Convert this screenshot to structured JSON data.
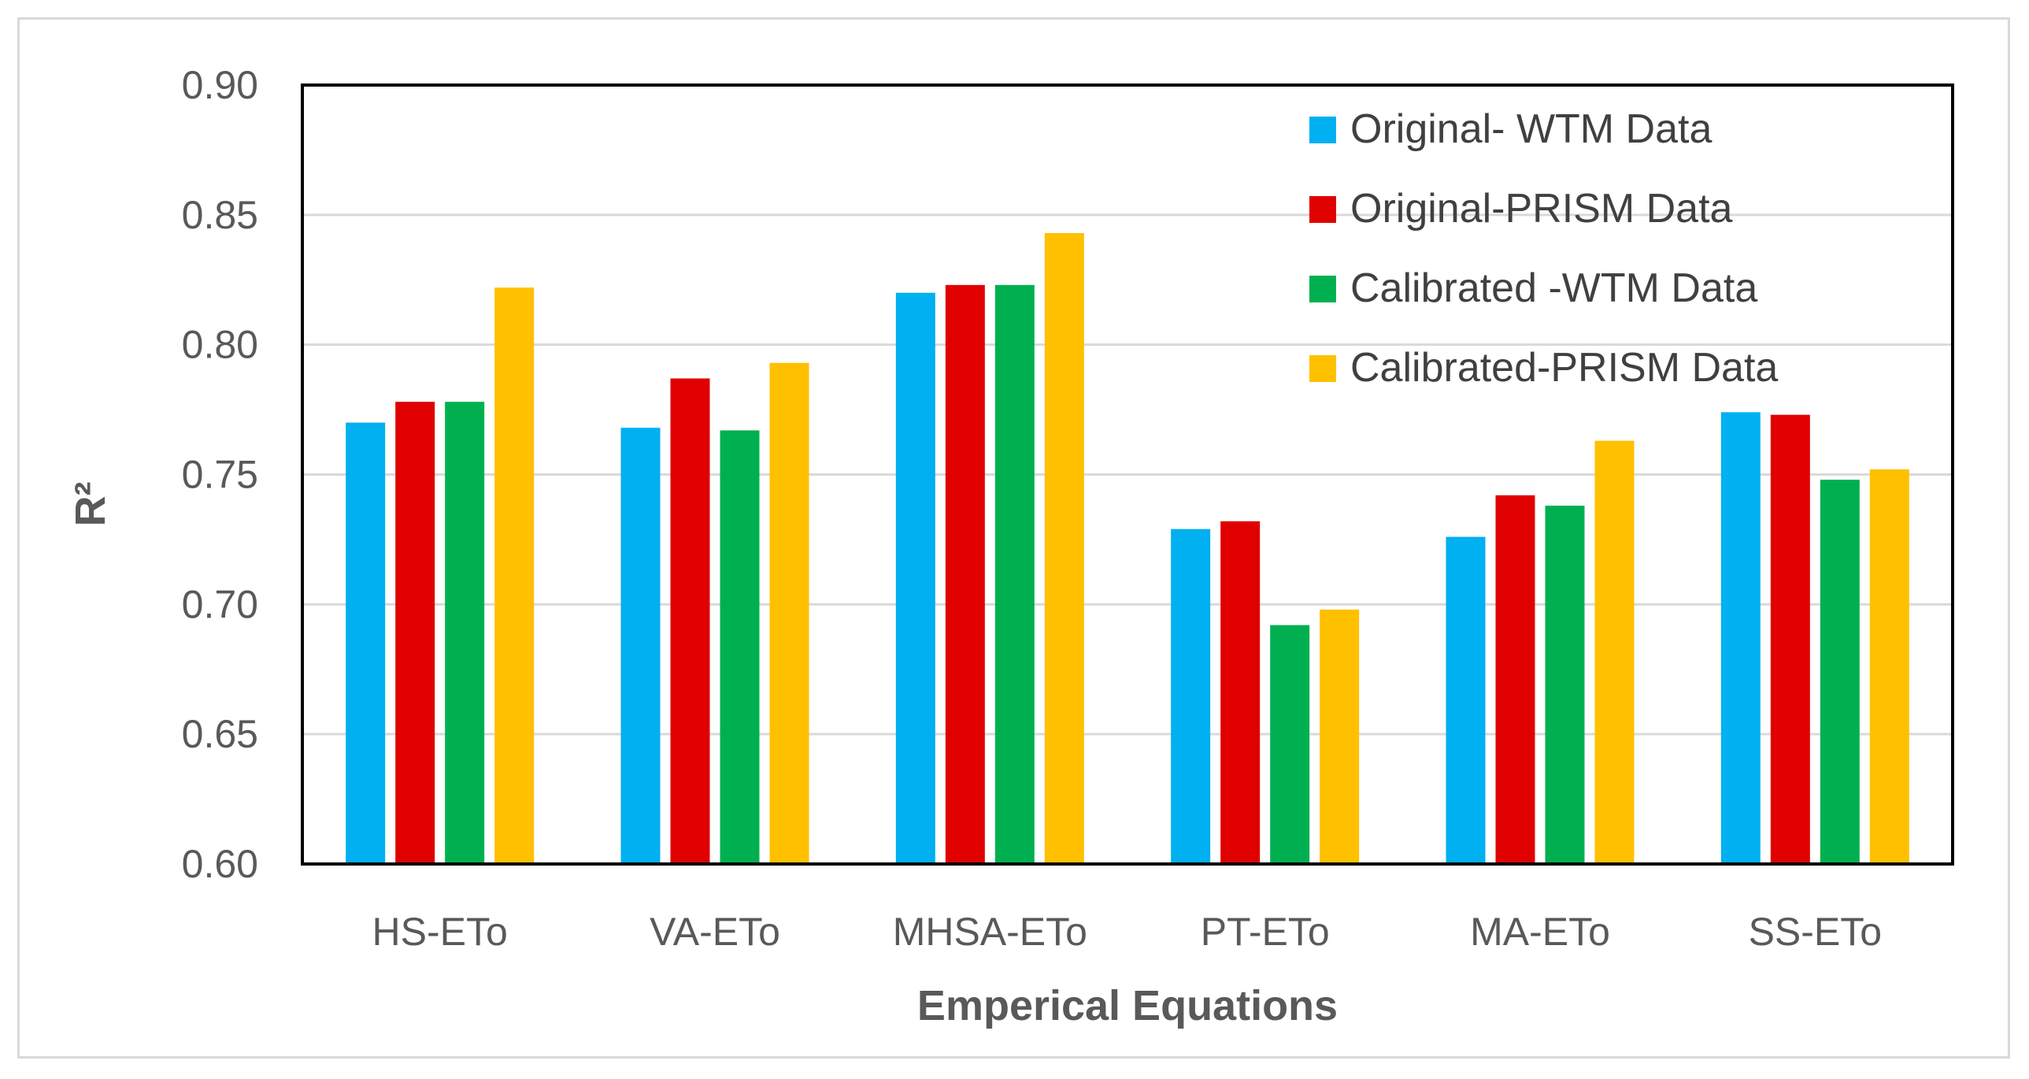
{
  "chart_data": {
    "type": "bar",
    "categories": [
      "HS-ETo",
      "VA-ETo",
      "MHSA-ETo",
      "PT-ETo",
      "MA-ETo",
      "SS-ETo"
    ],
    "series": [
      {
        "name": "Original- WTM Data",
        "color": "#00b0f0",
        "values": [
          0.77,
          0.768,
          0.82,
          0.729,
          0.726,
          0.774
        ]
      },
      {
        "name": "Original-PRISM Data",
        "color": "#e00000",
        "values": [
          0.778,
          0.787,
          0.823,
          0.732,
          0.742,
          0.773
        ]
      },
      {
        "name": "Calibrated -WTM Data",
        "color": "#00b050",
        "values": [
          0.778,
          0.767,
          0.823,
          0.692,
          0.738,
          0.748
        ]
      },
      {
        "name": "Calibrated-PRISM Data",
        "color": "#ffc000",
        "values": [
          0.822,
          0.793,
          0.843,
          0.698,
          0.763,
          0.752
        ]
      }
    ],
    "xlabel": "Emperical Equations",
    "ylabel": "R²",
    "ylim": [
      0.6,
      0.9
    ],
    "yticks": [
      "0.60",
      "0.65",
      "0.70",
      "0.75",
      "0.80",
      "0.85",
      "0.90"
    ],
    "grid": true,
    "legend_position": "top-right"
  }
}
